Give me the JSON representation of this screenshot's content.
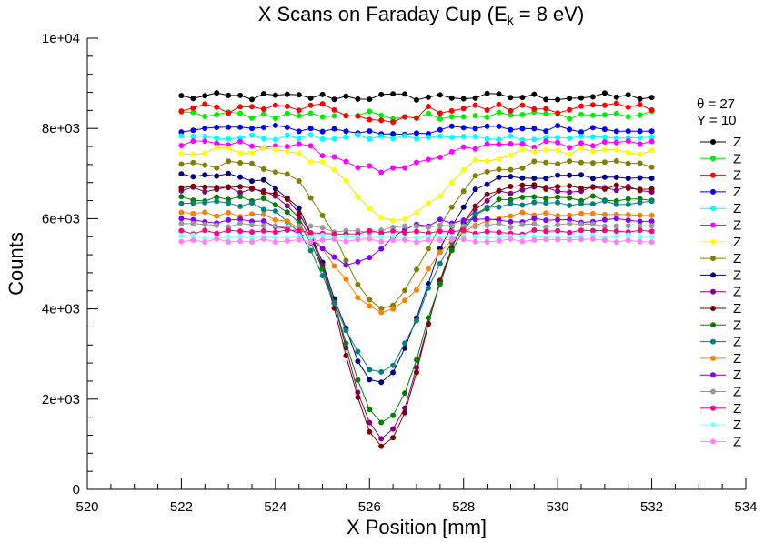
{
  "chart_data": {
    "type": "line",
    "title": "X Scans on Faraday Cup (E",
    "title_sub": "k",
    "title_end": " = 8 eV)",
    "xlabel": "X Position [mm]",
    "ylabel": "Counts",
    "xlim": [
      520,
      534
    ],
    "ylim": [
      0,
      10000
    ],
    "x_ticks": [
      520,
      522,
      524,
      526,
      528,
      530,
      532,
      534
    ],
    "x_tick_labels": [
      "520",
      "522",
      "524",
      "526",
      "528",
      "530",
      "532",
      "534"
    ],
    "y_ticks": [
      0,
      2000,
      4000,
      6000,
      8000,
      10000
    ],
    "y_tick_labels": [
      "0",
      "2e+03",
      "4e+03",
      "6e+03",
      "8e+03",
      "1e+04"
    ],
    "grid": false,
    "legend_position": "right",
    "legend_header": [
      "θ = 27",
      "Y = 10"
    ],
    "x": [
      522.0,
      522.25,
      522.5,
      522.75,
      523.0,
      523.25,
      523.5,
      523.75,
      524.0,
      524.25,
      524.5,
      524.75,
      525.0,
      525.25,
      525.5,
      525.75,
      526.0,
      526.25,
      526.5,
      526.75,
      527.0,
      527.25,
      527.5,
      527.75,
      528.0,
      528.25,
      528.5,
      528.75,
      529.0,
      529.25,
      529.5,
      529.75,
      530.0,
      530.25,
      530.5,
      530.75,
      531.0,
      531.25,
      531.5,
      531.75,
      532.0
    ],
    "series": [
      {
        "name": "Z",
        "color": "#000000",
        "baseline": 8700,
        "noise": 90,
        "depth": 0,
        "width": 0.6,
        "center": 526.4
      },
      {
        "name": "Z",
        "color": "#00ee00",
        "baseline": 8300,
        "noise": 90,
        "depth": 0,
        "width": 0.6,
        "center": 526.4
      },
      {
        "name": "Z",
        "color": "#ff0000",
        "baseline": 8450,
        "noise": 110,
        "depth": 350,
        "width": 0.5,
        "center": 526.3
      },
      {
        "name": "Z",
        "color": "#0000ff",
        "baseline": 8000,
        "noise": 80,
        "depth": 100,
        "width": 0.8,
        "center": 526.4
      },
      {
        "name": "Z",
        "color": "#00ffff",
        "baseline": 7800,
        "noise": 60,
        "depth": 0,
        "width": 0.6,
        "center": 526.4
      },
      {
        "name": "Z",
        "color": "#ff00ff",
        "baseline": 7650,
        "noise": 80,
        "depth": 600,
        "width": 0.9,
        "center": 526.4
      },
      {
        "name": "Z",
        "color": "#ffff00",
        "baseline": 7500,
        "noise": 100,
        "depth": 1500,
        "width": 0.9,
        "center": 526.6
      },
      {
        "name": "Z",
        "color": "#808000",
        "baseline": 7200,
        "noise": 80,
        "depth": 3200,
        "width": 0.9,
        "center": 526.3
      },
      {
        "name": "Z",
        "color": "#000080",
        "baseline": 6950,
        "noise": 70,
        "depth": 4650,
        "width": 0.9,
        "center": 526.2
      },
      {
        "name": "Z",
        "color": "#800080",
        "baseline": 6650,
        "noise": 70,
        "depth": 5500,
        "width": 0.85,
        "center": 526.3
      },
      {
        "name": "Z",
        "color": "#800000",
        "baseline": 6700,
        "noise": 60,
        "depth": 5750,
        "width": 0.85,
        "center": 526.3
      },
      {
        "name": "Z",
        "color": "#008000",
        "baseline": 6450,
        "noise": 60,
        "depth": 5000,
        "width": 0.85,
        "center": 526.3
      },
      {
        "name": "Z",
        "color": "#008080",
        "baseline": 6350,
        "noise": 60,
        "depth": 3800,
        "width": 0.9,
        "center": 526.2
      },
      {
        "name": "Z",
        "color": "#ff8000",
        "baseline": 6100,
        "noise": 60,
        "depth": 2200,
        "width": 0.9,
        "center": 526.3
      },
      {
        "name": "Z",
        "color": "#8000ff",
        "baseline": 5950,
        "noise": 60,
        "depth": 950,
        "width": 0.7,
        "center": 525.6
      },
      {
        "name": "Z",
        "color": "#999999",
        "baseline": 5850,
        "noise": 50,
        "depth": 150,
        "width": 0.6,
        "center": 525.6
      },
      {
        "name": "Z",
        "color": "#ff0080",
        "baseline": 5700,
        "noise": 50,
        "depth": 0,
        "width": 0.6,
        "center": 526.4
      },
      {
        "name": "Z",
        "color": "#80ffff",
        "baseline": 5600,
        "noise": 40,
        "depth": 0,
        "width": 0.6,
        "center": 526.4
      },
      {
        "name": "Z",
        "color": "#ff80ff",
        "baseline": 5520,
        "noise": 40,
        "depth": 0,
        "width": 0.6,
        "center": 526.4
      }
    ]
  }
}
